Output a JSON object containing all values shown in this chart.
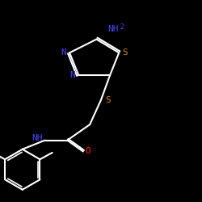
{
  "background": "#000000",
  "bond_color": "#ffffff",
  "bond_width": 1.5,
  "atom_colors": {
    "N": "#4444ff",
    "S": "#cc8800",
    "O": "#ff2200",
    "NH": "#4444ff",
    "C": "#ffffff",
    "AM": "#4444ff"
  },
  "font_size_atom": 9,
  "font_size_sub": 7
}
